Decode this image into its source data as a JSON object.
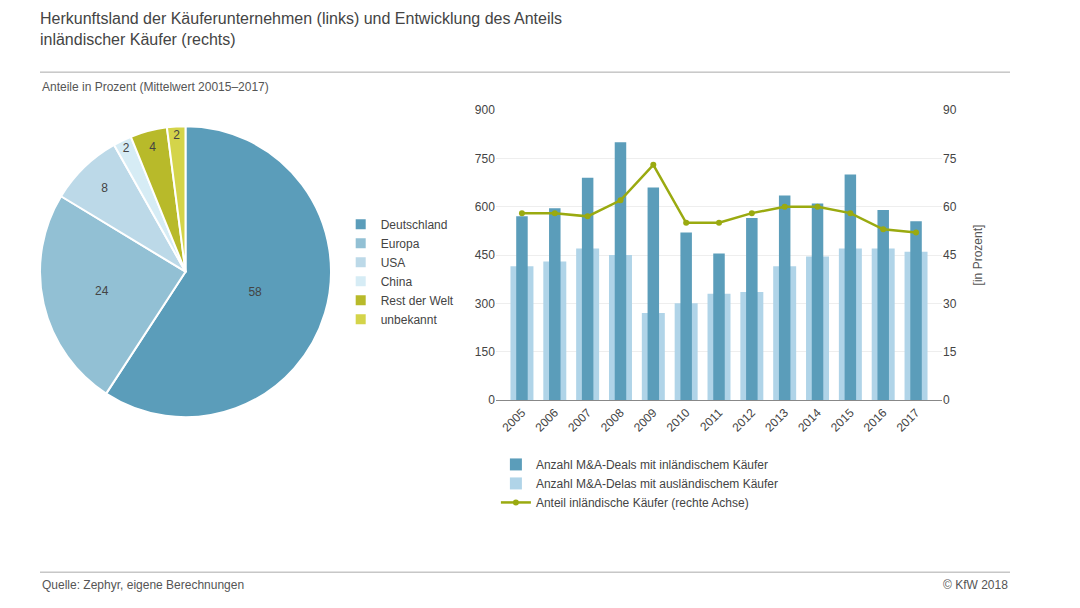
{
  "chart_data": [
    {
      "type": "pie",
      "title": "Herkunftsland der Käuferunternehmen (links) und Entwicklung des Anteils\ninländischer Käufer (rechts)",
      "subtitle": "Anteile in Prozent (Mittelwert 20015–2017)",
      "annotations": [
        "Quelle: Zephyr, eigene Berechnungen",
        "© KfW 2018"
      ],
      "categories": [
        "Deutschland",
        "Europa",
        "USA",
        "China",
        "Rest der Welt",
        "unbekannt"
      ],
      "values": [
        58,
        24,
        8,
        2,
        4,
        2
      ],
      "colors": [
        "#5b9dba",
        "#92c0d4",
        "#bcd9e8",
        "#d6ecf5",
        "#b8ba2a",
        "#d4d44a"
      ],
      "data_labels": true,
      "legend": "right"
    },
    {
      "type": "bar",
      "categories": [
        2005,
        2006,
        2007,
        2008,
        2009,
        2010,
        2011,
        2012,
        2013,
        2014,
        2015,
        2016,
        2017
      ],
      "series": [
        {
          "name": "Anzahl M&A-Deals mit inländischem Käufer",
          "type": "bar",
          "color": "#5b9dba",
          "values": [
            570,
            595,
            690,
            800,
            660,
            520,
            455,
            565,
            635,
            610,
            700,
            590,
            555
          ]
        },
        {
          "name": "Anzahl M&A-Delas mit ausländischem Käufer",
          "type": "bar",
          "color": "#b0d4e8",
          "values": [
            415,
            430,
            470,
            450,
            270,
            300,
            330,
            335,
            415,
            445,
            470,
            470,
            460
          ]
        },
        {
          "name": "Anteil inländische Käufer (rechte Achse)",
          "type": "line",
          "color": "#9aaa10",
          "axis": "y2",
          "marker": "circle",
          "line_style": "solid",
          "values": [
            58,
            58,
            57,
            62,
            73,
            55,
            55,
            58,
            60,
            60,
            58,
            53,
            52
          ]
        }
      ],
      "ylim": [
        0,
        900
      ],
      "yticks": [
        0,
        150,
        300,
        450,
        600,
        750,
        900
      ],
      "y2lim": [
        0,
        90
      ],
      "y2ticks": [
        0,
        15,
        30,
        45,
        60,
        75,
        90
      ],
      "y2label": "[in Prozent]",
      "grid": true,
      "legend": "bottom"
    }
  ]
}
